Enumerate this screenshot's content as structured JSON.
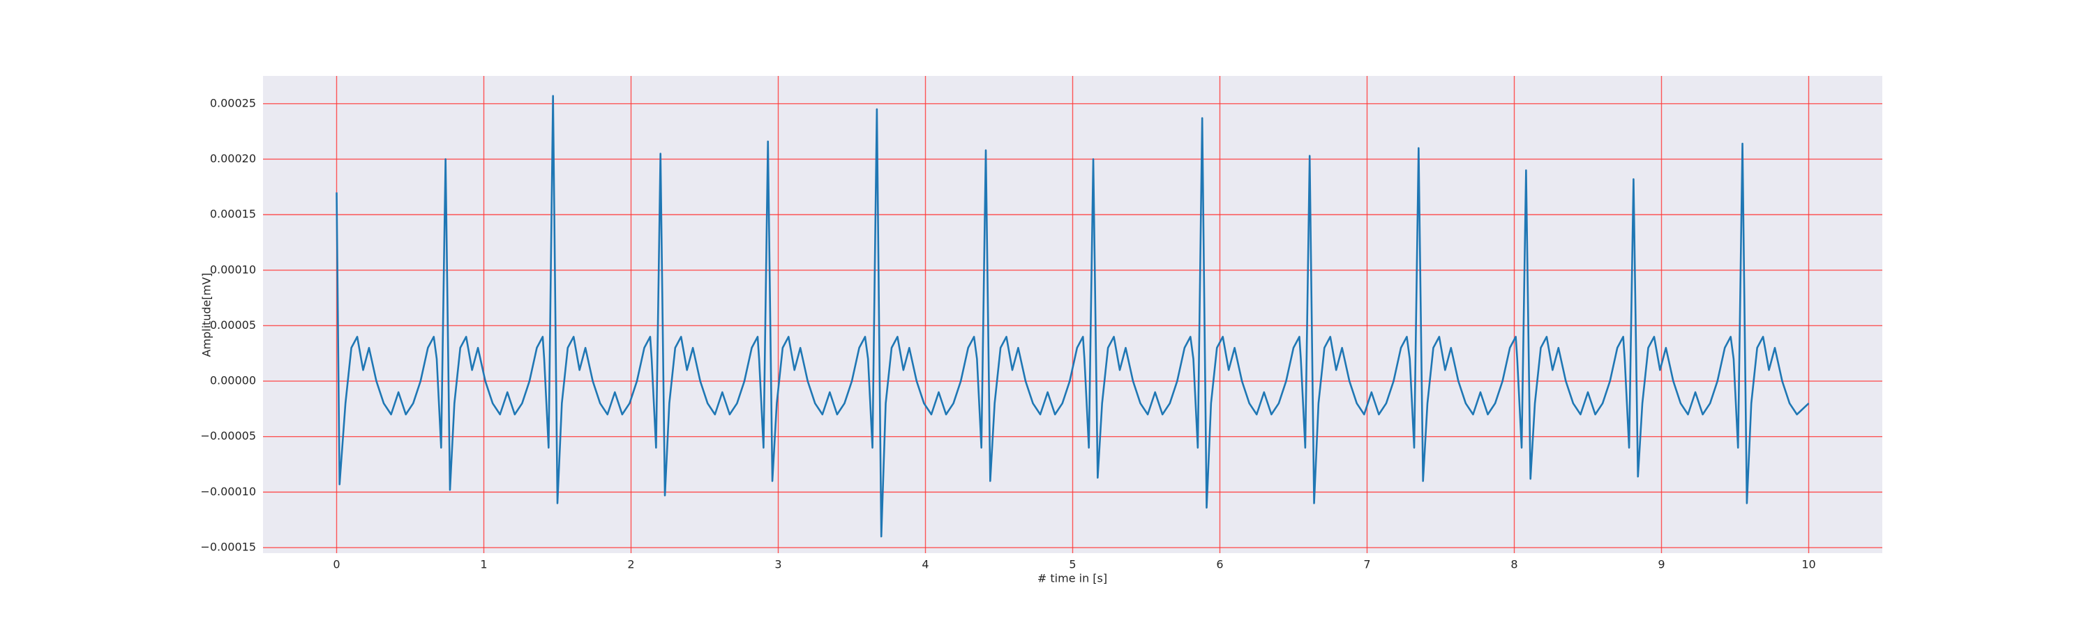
{
  "chart_data": {
    "type": "line",
    "xlabel": "# time in [s]",
    "ylabel": "Amplitude[mV]",
    "xlim": [
      -0.5,
      10.5
    ],
    "ylim": [
      -0.000155,
      0.000275
    ],
    "xticks": [
      0,
      1,
      2,
      3,
      4,
      5,
      6,
      7,
      8,
      9,
      10
    ],
    "yticks": [
      {
        "value": -0.00015,
        "label": "−0.00015"
      },
      {
        "value": -0.0001,
        "label": "−0.00010"
      },
      {
        "value": -5e-05,
        "label": "−0.00005"
      },
      {
        "value": 0,
        "label": "0.00000"
      },
      {
        "value": 5e-05,
        "label": "0.00005"
      },
      {
        "value": 0.0001,
        "label": "0.00010"
      },
      {
        "value": 0.00015,
        "label": "0.00015"
      },
      {
        "value": 0.0002,
        "label": "0.00020"
      },
      {
        "value": 0.00025,
        "label": "0.00025"
      }
    ],
    "grid": true,
    "grid_color": "#ff3b3b",
    "background": "#eaeaf2",
    "x": [
      0,
      0.02,
      0.06,
      0.1,
      0.14,
      0.18,
      0.22,
      0.27,
      0.32,
      0.37,
      0.42,
      0.47,
      0.52,
      0.57,
      0.62,
      0.66,
      0.68,
      0.71,
      0.74,
      0.77,
      0.8,
      0.84,
      0.88,
      0.92,
      0.96,
      1.01,
      1.06,
      1.11,
      1.16,
      1.21,
      1.26,
      1.31,
      1.36,
      1.4,
      1.41,
      1.44,
      1.47,
      1.5,
      1.53,
      1.57,
      1.61,
      1.65,
      1.69,
      1.74,
      1.79,
      1.84,
      1.89,
      1.94,
      1.99,
      2.04,
      2.09,
      2.13,
      2.14,
      2.17,
      2.2,
      2.23,
      2.26,
      2.3,
      2.34,
      2.38,
      2.42,
      2.47,
      2.52,
      2.57,
      2.62,
      2.67,
      2.72,
      2.77,
      2.82,
      2.86,
      2.87,
      2.9,
      2.93,
      2.96,
      2.99,
      3.03,
      3.07,
      3.11,
      3.15,
      3.2,
      3.25,
      3.3,
      3.35,
      3.4,
      3.45,
      3.5,
      3.55,
      3.59,
      3.61,
      3.64,
      3.67,
      3.7,
      3.73,
      3.77,
      3.81,
      3.85,
      3.89,
      3.94,
      3.99,
      4.04,
      4.09,
      4.14,
      4.19,
      4.24,
      4.29,
      4.33,
      4.35,
      4.38,
      4.41,
      4.44,
      4.47,
      4.51,
      4.55,
      4.59,
      4.63,
      4.68,
      4.73,
      4.78,
      4.83,
      4.88,
      4.93,
      4.98,
      5.03,
      5.07,
      5.08,
      5.11,
      5.14,
      5.17,
      5.2,
      5.24,
      5.28,
      5.32,
      5.36,
      5.41,
      5.46,
      5.51,
      5.56,
      5.61,
      5.66,
      5.71,
      5.76,
      5.8,
      5.82,
      5.85,
      5.88,
      5.91,
      5.94,
      5.98,
      6.02,
      6.06,
      6.1,
      6.15,
      6.2,
      6.25,
      6.3,
      6.35,
      6.4,
      6.45,
      6.5,
      6.54,
      6.55,
      6.58,
      6.61,
      6.64,
      6.67,
      6.71,
      6.75,
      6.79,
      6.83,
      6.88,
      6.93,
      6.98,
      7.03,
      7.08,
      7.13,
      7.18,
      7.23,
      7.27,
      7.29,
      7.32,
      7.35,
      7.38,
      7.41,
      7.45,
      7.49,
      7.53,
      7.57,
      7.62,
      7.67,
      7.72,
      7.77,
      7.82,
      7.87,
      7.92,
      7.97,
      8.01,
      8.02,
      8.05,
      8.08,
      8.11,
      8.14,
      8.18,
      8.22,
      8.26,
      8.3,
      8.35,
      8.4,
      8.45,
      8.5,
      8.55,
      8.6,
      8.65,
      8.7,
      8.74,
      8.75,
      8.78,
      8.81,
      8.84,
      8.87,
      8.91,
      8.95,
      8.99,
      9.03,
      9.08,
      9.13,
      9.18,
      9.23,
      9.28,
      9.33,
      9.38,
      9.43,
      9.47,
      9.49,
      9.52,
      9.55,
      9.58,
      9.61,
      9.65,
      9.69,
      9.73,
      9.77,
      9.82,
      9.87,
      9.92,
      10.0
    ],
    "series": [
      {
        "color": "#1f77b4",
        "values": [
          0.00017,
          -9.3e-05,
          -2e-05,
          3e-05,
          4e-05,
          1e-05,
          3e-05,
          0,
          -2e-05,
          -3e-05,
          -1e-05,
          -3e-05,
          -2e-05,
          0,
          3e-05,
          4e-05,
          2e-05,
          -6e-05,
          0.0002,
          -9.8e-05,
          -2e-05,
          3e-05,
          4e-05,
          1e-05,
          3e-05,
          0,
          -2e-05,
          -3e-05,
          -1e-05,
          -3e-05,
          -2e-05,
          0,
          3e-05,
          4e-05,
          2e-05,
          -6e-05,
          0.000257,
          -0.00011,
          -2e-05,
          3e-05,
          4e-05,
          1e-05,
          3e-05,
          0,
          -2e-05,
          -3e-05,
          -1e-05,
          -3e-05,
          -2e-05,
          0,
          3e-05,
          4e-05,
          2e-05,
          -6e-05,
          0.000205,
          -0.000103,
          -2e-05,
          3e-05,
          4e-05,
          1e-05,
          3e-05,
          0,
          -2e-05,
          -3e-05,
          -1e-05,
          -3e-05,
          -2e-05,
          0,
          3e-05,
          4e-05,
          2e-05,
          -6e-05,
          0.000216,
          -9e-05,
          -2e-05,
          3e-05,
          4e-05,
          1e-05,
          3e-05,
          0,
          -2e-05,
          -3e-05,
          -1e-05,
          -3e-05,
          -2e-05,
          0,
          3e-05,
          4e-05,
          2e-05,
          -6e-05,
          0.000245,
          -0.00014,
          -2e-05,
          3e-05,
          4e-05,
          1e-05,
          3e-05,
          0,
          -2e-05,
          -3e-05,
          -1e-05,
          -3e-05,
          -2e-05,
          0,
          3e-05,
          4e-05,
          2e-05,
          -6e-05,
          0.000208,
          -9e-05,
          -2e-05,
          3e-05,
          4e-05,
          1e-05,
          3e-05,
          0,
          -2e-05,
          -3e-05,
          -1e-05,
          -3e-05,
          -2e-05,
          0,
          3e-05,
          4e-05,
          2e-05,
          -6e-05,
          0.0002,
          -8.7e-05,
          -2e-05,
          3e-05,
          4e-05,
          1e-05,
          3e-05,
          0,
          -2e-05,
          -3e-05,
          -1e-05,
          -3e-05,
          -2e-05,
          0,
          3e-05,
          4e-05,
          2e-05,
          -6e-05,
          0.000237,
          -0.000114,
          -2e-05,
          3e-05,
          4e-05,
          1e-05,
          3e-05,
          0,
          -2e-05,
          -3e-05,
          -1e-05,
          -3e-05,
          -2e-05,
          0,
          3e-05,
          4e-05,
          2e-05,
          -6e-05,
          0.000203,
          -0.00011,
          -2e-05,
          3e-05,
          4e-05,
          1e-05,
          3e-05,
          0,
          -2e-05,
          -3e-05,
          -1e-05,
          -3e-05,
          -2e-05,
          0,
          3e-05,
          4e-05,
          2e-05,
          -6e-05,
          0.00021,
          -9e-05,
          -2e-05,
          3e-05,
          4e-05,
          1e-05,
          3e-05,
          0,
          -2e-05,
          -3e-05,
          -1e-05,
          -3e-05,
          -2e-05,
          0,
          3e-05,
          4e-05,
          2e-05,
          -6e-05,
          0.00019,
          -8.8e-05,
          -2e-05,
          3e-05,
          4e-05,
          1e-05,
          3e-05,
          0,
          -2e-05,
          -3e-05,
          -1e-05,
          -3e-05,
          -2e-05,
          0,
          3e-05,
          4e-05,
          2e-05,
          -6e-05,
          0.000182,
          -8.6e-05,
          -2e-05,
          3e-05,
          4e-05,
          1e-05,
          3e-05,
          0,
          -2e-05,
          -3e-05,
          -1e-05,
          -3e-05,
          -2e-05,
          0,
          3e-05,
          4e-05,
          2e-05,
          -6e-05,
          0.000214,
          -0.00011,
          -2e-05,
          3e-05,
          4e-05,
          1e-05,
          3e-05,
          0,
          -2e-05,
          -3e-05,
          -2e-05
        ]
      }
    ]
  }
}
